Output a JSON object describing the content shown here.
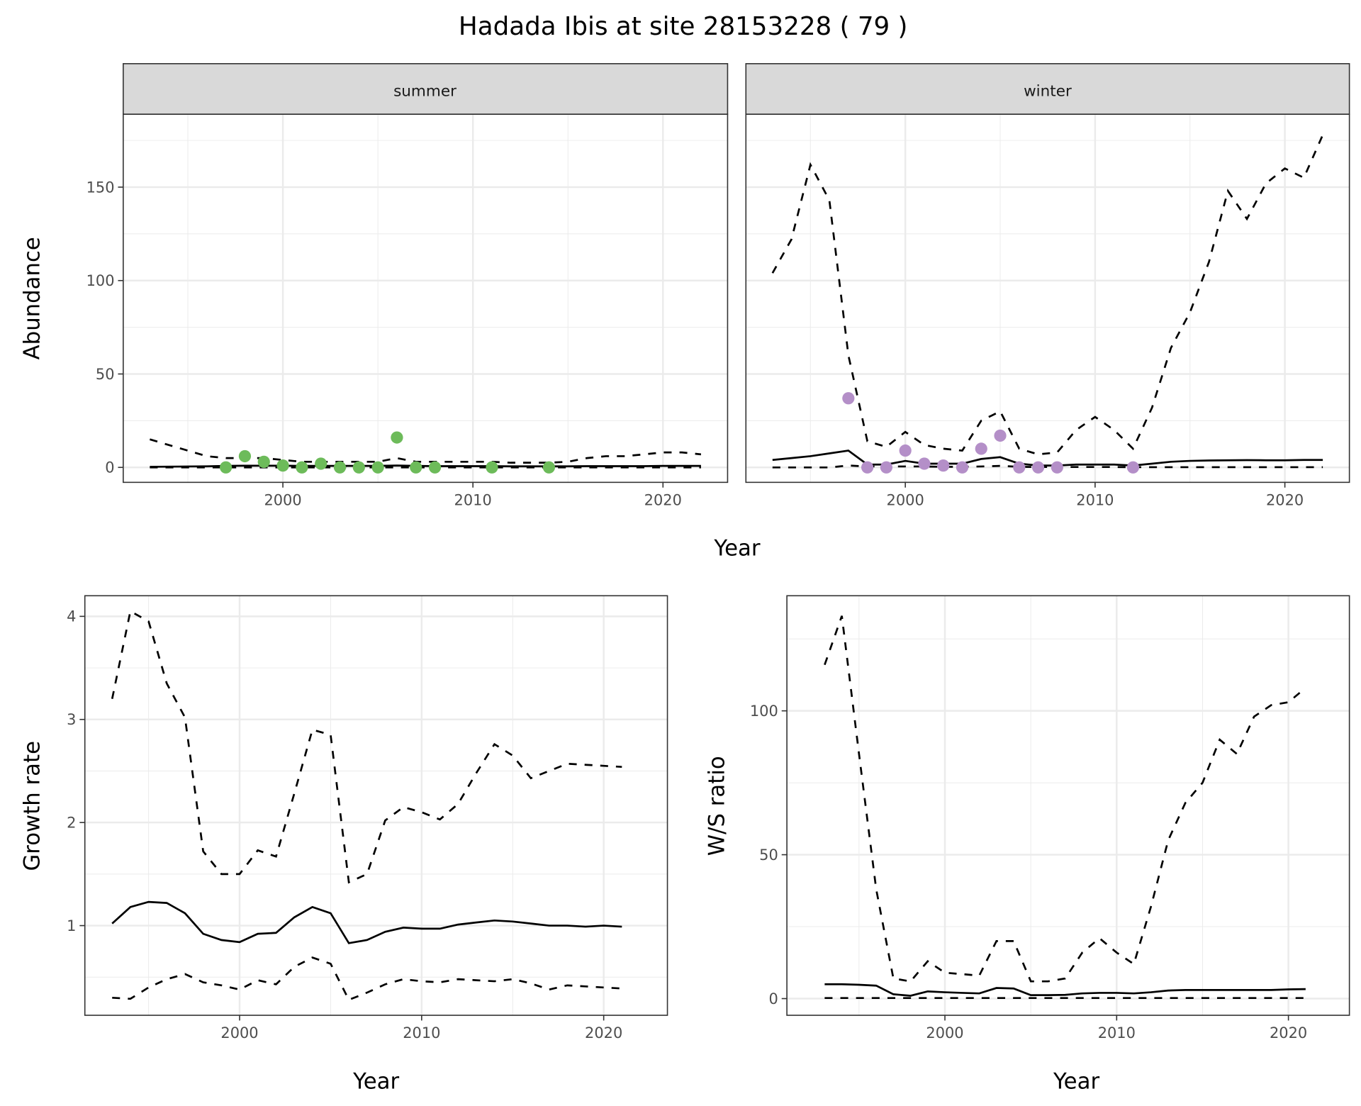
{
  "title": "Hadada Ibis at site 28153228 ( 79 )",
  "colors": {
    "summer_points": "#6dbb5a",
    "winter_points": "#b48fc8",
    "line": "#000000",
    "grid": "#ebebeb",
    "strip_bg": "#d9d9d9"
  },
  "chart_data": [
    {
      "type": "line+scatter",
      "facet": "summer",
      "xlabel": "Year",
      "ylabel": "Abundance",
      "xlim": [
        1991.6,
        2023.4
      ],
      "ylim": [
        -8,
        189
      ],
      "xticks": [
        2000,
        2010,
        2020
      ],
      "xtick_labels": [
        "2000",
        "2010",
        "2020"
      ],
      "yticks": [
        0,
        50,
        100,
        150
      ],
      "ytick_labels": [
        "0",
        "50",
        "100",
        "150"
      ],
      "x": [
        1993,
        1994,
        1995,
        1996,
        1997,
        1998,
        1999,
        2000,
        2001,
        2002,
        2003,
        2004,
        2005,
        2006,
        2007,
        2008,
        2009,
        2010,
        2011,
        2012,
        2013,
        2014,
        2015,
        2016,
        2017,
        2018,
        2019,
        2020,
        2021,
        2022
      ],
      "mean": [
        0.3,
        0.4,
        0.5,
        0.6,
        0.8,
        0.9,
        0.9,
        0.9,
        0.8,
        0.8,
        0.8,
        0.8,
        0.8,
        1,
        0.8,
        0.7,
        0.7,
        0.7,
        0.7,
        0.6,
        0.6,
        0.6,
        0.6,
        0.7,
        0.7,
        0.7,
        0.7,
        0.8,
        0.8,
        0.8
      ],
      "upper": [
        15,
        12,
        9,
        6,
        5,
        5,
        5,
        4,
        3,
        3,
        3,
        3,
        3,
        5,
        3,
        3,
        3,
        3,
        3,
        2.5,
        2.5,
        2.5,
        3,
        5,
        6,
        6,
        7,
        8,
        8,
        7
      ],
      "lower": [
        0,
        0,
        0,
        0,
        0,
        0,
        0,
        0,
        0,
        0,
        0,
        0,
        0,
        0,
        0,
        0,
        0,
        0,
        0,
        0,
        0,
        0,
        0,
        0,
        0,
        0,
        0,
        0,
        0,
        0
      ],
      "points": {
        "x": [
          1997,
          1998,
          1999,
          2000,
          2001,
          2002,
          2003,
          2004,
          2005,
          2006,
          2007,
          2008,
          2011,
          2014
        ],
        "y": [
          0,
          6,
          3,
          1,
          0,
          2,
          0,
          0,
          0,
          16,
          0,
          0,
          0,
          0
        ]
      }
    },
    {
      "type": "line+scatter",
      "facet": "winter",
      "xlabel": "Year",
      "ylabel": "Abundance",
      "xlim": [
        1991.6,
        2023.4
      ],
      "ylim": [
        -8,
        189
      ],
      "xticks": [
        2000,
        2010,
        2020
      ],
      "xtick_labels": [
        "2000",
        "2010",
        "2020"
      ],
      "yticks": [
        0,
        50,
        100,
        150
      ],
      "x": [
        1993,
        1994,
        1995,
        1996,
        1997,
        1998,
        1999,
        2000,
        2001,
        2002,
        2003,
        2004,
        2005,
        2006,
        2007,
        2008,
        2009,
        2010,
        2011,
        2012,
        2013,
        2014,
        2015,
        2016,
        2017,
        2018,
        2019,
        2020,
        2021,
        2022
      ],
      "mean": [
        4,
        5,
        6,
        7.5,
        9,
        1.5,
        1.5,
        3.5,
        2,
        2,
        2,
        4.5,
        5.5,
        2,
        1,
        1,
        1.5,
        1.5,
        1.5,
        1,
        2,
        3,
        3.5,
        3.7,
        3.8,
        3.9,
        3.8,
        3.8,
        4,
        4
      ],
      "upper": [
        104,
        122,
        162,
        143,
        60,
        14,
        11,
        19,
        12,
        10,
        9,
        25,
        30,
        10,
        7,
        8,
        20,
        27,
        20,
        10,
        32,
        64,
        83,
        110,
        148,
        133,
        152,
        160,
        155,
        178
      ],
      "lower": [
        0,
        0,
        0,
        0,
        1,
        0.5,
        0.5,
        0.5,
        0.5,
        0.3,
        0.3,
        0.5,
        0.8,
        0.3,
        0.2,
        0.2,
        0.2,
        0.2,
        0.2,
        0.1,
        0.1,
        0.1,
        0.1,
        0.1,
        0.1,
        0.1,
        0.1,
        0.1,
        0.1,
        0.1
      ],
      "points": {
        "x": [
          1997,
          1998,
          1999,
          2000,
          2001,
          2002,
          2003,
          2004,
          2005,
          2006,
          2007,
          2008,
          2012
        ],
        "y": [
          37,
          0,
          0,
          9,
          2,
          1,
          0,
          10,
          17,
          0,
          0,
          0,
          0
        ]
      }
    },
    {
      "type": "line",
      "xlabel": "Year",
      "ylabel": "Growth rate",
      "xlim": [
        1991.5,
        2023.5
      ],
      "ylim": [
        0.13,
        4.2
      ],
      "xticks": [
        2000,
        2010,
        2020
      ],
      "xtick_labels": [
        "2000",
        "2010",
        "2020"
      ],
      "yticks": [
        1,
        2,
        3,
        4
      ],
      "ytick_labels": [
        "1",
        "2",
        "3",
        "4"
      ],
      "x": [
        1993,
        1994,
        1995,
        1996,
        1997,
        1998,
        1999,
        2000,
        2001,
        2002,
        2003,
        2004,
        2005,
        2006,
        2007,
        2008,
        2009,
        2010,
        2011,
        2012,
        2013,
        2014,
        2015,
        2016,
        2017,
        2018,
        2019,
        2020,
        2021
      ],
      "mean": [
        1.02,
        1.18,
        1.23,
        1.22,
        1.12,
        0.92,
        0.86,
        0.84,
        0.92,
        0.93,
        1.08,
        1.18,
        1.12,
        0.83,
        0.86,
        0.94,
        0.98,
        0.97,
        0.97,
        1.01,
        1.03,
        1.05,
        1.04,
        1.02,
        1.0,
        1.0,
        0.99,
        1.0,
        0.99
      ],
      "upper": [
        3.2,
        4.05,
        3.95,
        3.35,
        3.02,
        1.72,
        1.5,
        1.5,
        1.73,
        1.67,
        2.28,
        2.9,
        2.85,
        1.42,
        1.5,
        2.02,
        2.15,
        2.1,
        2.03,
        2.18,
        2.48,
        2.76,
        2.65,
        2.43,
        2.5,
        2.57,
        2.56,
        2.55,
        2.54
      ],
      "lower": [
        0.3,
        0.29,
        0.4,
        0.48,
        0.53,
        0.45,
        0.42,
        0.38,
        0.47,
        0.43,
        0.6,
        0.69,
        0.63,
        0.28,
        0.35,
        0.43,
        0.48,
        0.46,
        0.45,
        0.48,
        0.47,
        0.46,
        0.48,
        0.44,
        0.38,
        0.42,
        0.41,
        0.4,
        0.39
      ]
    },
    {
      "type": "line",
      "xlabel": "Year",
      "ylabel": "W/S ratio",
      "xlim": [
        1990.8,
        2023.55
      ],
      "ylim": [
        -5.8,
        140
      ],
      "xticks": [
        2000,
        2010,
        2020
      ],
      "xtick_labels": [
        "2000",
        "2010",
        "2020"
      ],
      "yticks": [
        0,
        50,
        100
      ],
      "ytick_labels": [
        "0",
        "50",
        "100"
      ],
      "x": [
        1993,
        1994,
        1995,
        1996,
        1997,
        1998,
        1999,
        2000,
        2001,
        2002,
        2003,
        2004,
        2005,
        2006,
        2007,
        2008,
        2009,
        2010,
        2011,
        2012,
        2013,
        2014,
        2015,
        2016,
        2017,
        2018,
        2019,
        2020,
        2021
      ],
      "mean": [
        5,
        5,
        4.8,
        4.5,
        1.5,
        1,
        2.5,
        2.2,
        2,
        1.8,
        3.7,
        3.5,
        1.2,
        1.2,
        1.3,
        1.8,
        2,
        2,
        1.8,
        2.2,
        2.8,
        3,
        3,
        3,
        3,
        3,
        3,
        3.2,
        3.3
      ],
      "upper": [
        116,
        133,
        85,
        38,
        7,
        6,
        13,
        9,
        8.5,
        8,
        20,
        20,
        6,
        6,
        7,
        16,
        21,
        16,
        12,
        32,
        55,
        68,
        75,
        90,
        85,
        98,
        102,
        103,
        108
      ],
      "lower": [
        0.2,
        0.2,
        0.2,
        0.2,
        0.2,
        0.2,
        0.2,
        0.2,
        0.2,
        0.2,
        0.2,
        0.2,
        0.2,
        0.2,
        0.2,
        0.2,
        0.2,
        0.2,
        0.2,
        0.2,
        0.2,
        0.2,
        0.2,
        0.2,
        0.2,
        0.2,
        0.2,
        0.2,
        0.2
      ]
    }
  ]
}
